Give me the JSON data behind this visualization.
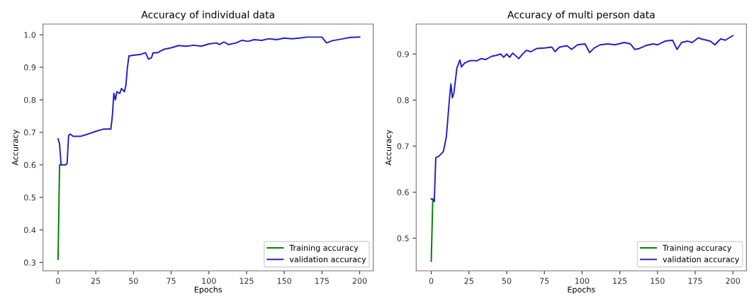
{
  "chart_data": [
    {
      "type": "line",
      "title": "Accuracy of individual data",
      "xlabel": "Epochs",
      "ylabel": "Accuracy",
      "xlim": [
        -10,
        209
      ],
      "ylim": [
        0.274,
        1.033
      ],
      "xticks": [
        0,
        25,
        50,
        75,
        100,
        125,
        150,
        175,
        200
      ],
      "yticks": [
        {
          "value": 0.3,
          "label": "0.3"
        },
        {
          "value": 0.4,
          "label": "0.4"
        },
        {
          "value": 0.5,
          "label": "0.5"
        },
        {
          "value": 0.6,
          "label": "0.6"
        },
        {
          "value": 0.7,
          "label": "0.7"
        },
        {
          "value": 0.8,
          "label": "0.8"
        },
        {
          "value": 0.9,
          "label": "0.9"
        },
        {
          "value": 1.0,
          "label": "1.0"
        }
      ],
      "grid": false,
      "legend": "bottom right",
      "series": [
        {
          "name": "Training accuracy",
          "color": "#008000",
          "x": [
            0,
            1,
            2
          ],
          "values": [
            0.31,
            0.6,
            0.6
          ]
        },
        {
          "name": "validation accuracy",
          "color": "#2020c8",
          "x": [
            0,
            1,
            2,
            3,
            5,
            6,
            7,
            8,
            10,
            15,
            20,
            25,
            30,
            35,
            36,
            37,
            38,
            39,
            41,
            42,
            44,
            45,
            46,
            47,
            50,
            55,
            58,
            60,
            62,
            63,
            66,
            70,
            75,
            80,
            85,
            90,
            95,
            100,
            105,
            107,
            110,
            113,
            118,
            122,
            126,
            130,
            135,
            140,
            145,
            150,
            155,
            160,
            165,
            170,
            175,
            178,
            182,
            188,
            194,
            200
          ],
          "values": [
            0.68,
            0.665,
            0.6,
            0.6,
            0.6,
            0.605,
            0.69,
            0.695,
            0.688,
            0.688,
            0.695,
            0.703,
            0.71,
            0.71,
            0.75,
            0.82,
            0.8,
            0.825,
            0.82,
            0.835,
            0.825,
            0.845,
            0.9,
            0.935,
            0.937,
            0.94,
            0.945,
            0.925,
            0.93,
            0.945,
            0.945,
            0.955,
            0.96,
            0.967,
            0.965,
            0.968,
            0.965,
            0.972,
            0.975,
            0.97,
            0.978,
            0.97,
            0.975,
            0.983,
            0.98,
            0.985,
            0.983,
            0.988,
            0.985,
            0.99,
            0.988,
            0.99,
            0.993,
            0.993,
            0.993,
            0.975,
            0.982,
            0.987,
            0.992,
            0.993
          ]
        }
      ]
    },
    {
      "type": "line",
      "title": "Accuracy of multi person data",
      "xlabel": "Epochs",
      "ylabel": "Accuracy",
      "xlim": [
        -10,
        209
      ],
      "ylim": [
        0.429,
        0.965
      ],
      "xticks": [
        0,
        25,
        50,
        75,
        100,
        125,
        150,
        175,
        200
      ],
      "yticks": [
        0.5,
        0.6,
        0.7,
        0.8,
        0.9
      ],
      "grid": false,
      "legend": "bottom right",
      "series": [
        {
          "name": "Training accuracy",
          "color": "#008000",
          "x": [
            0,
            1,
            2
          ],
          "values": [
            0.45,
            0.585,
            0.58
          ]
        },
        {
          "name": "validation accuracy",
          "color": "#2020c8",
          "x": [
            0,
            1,
            2,
            3,
            5,
            8,
            10,
            11,
            12,
            13,
            14,
            15,
            17,
            18,
            19,
            20,
            22,
            25,
            28,
            30,
            33,
            36,
            40,
            43,
            46,
            48,
            50,
            52,
            54,
            56,
            58,
            60,
            63,
            66,
            70,
            75,
            80,
            82,
            85,
            90,
            93,
            97,
            102,
            105,
            108,
            112,
            117,
            122,
            128,
            132,
            135,
            138,
            142,
            147,
            150,
            155,
            160,
            163,
            166,
            170,
            173,
            177,
            180,
            185,
            188,
            192,
            195,
            200
          ],
          "values": [
            0.585,
            0.585,
            0.58,
            0.675,
            0.678,
            0.688,
            0.72,
            0.76,
            0.8,
            0.835,
            0.805,
            0.815,
            0.87,
            0.878,
            0.887,
            0.872,
            0.88,
            0.885,
            0.886,
            0.885,
            0.89,
            0.888,
            0.895,
            0.897,
            0.9,
            0.893,
            0.9,
            0.893,
            0.902,
            0.896,
            0.89,
            0.898,
            0.908,
            0.905,
            0.912,
            0.913,
            0.915,
            0.905,
            0.915,
            0.918,
            0.91,
            0.92,
            0.922,
            0.903,
            0.913,
            0.92,
            0.922,
            0.92,
            0.925,
            0.922,
            0.91,
            0.912,
            0.918,
            0.922,
            0.92,
            0.928,
            0.93,
            0.91,
            0.925,
            0.928,
            0.925,
            0.935,
            0.932,
            0.928,
            0.92,
            0.933,
            0.93,
            0.94
          ]
        }
      ]
    }
  ]
}
